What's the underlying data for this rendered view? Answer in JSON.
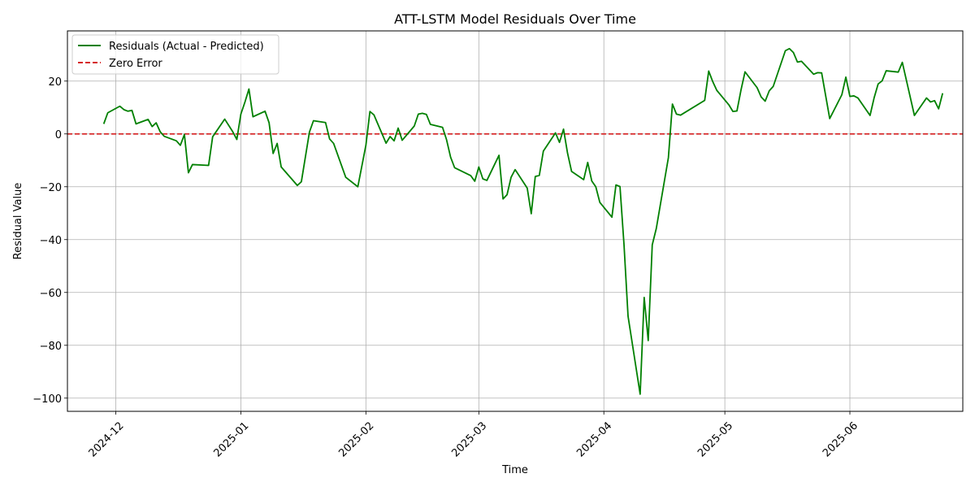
{
  "chart_data": {
    "type": "line",
    "title": "ATT-LSTM Model Residuals Over Time",
    "xlabel": "Time",
    "ylabel": "Residual Value",
    "grid": true,
    "legend_position": "top-left",
    "xlim": [
      "2024-11-19",
      "2025-06-29"
    ],
    "ylim": [
      -105,
      39
    ],
    "xticks": [
      {
        "date": "2024-12-01",
        "label": "2024-12"
      },
      {
        "date": "2025-01-01",
        "label": "2025-01"
      },
      {
        "date": "2025-02-01",
        "label": "2025-02"
      },
      {
        "date": "2025-03-01",
        "label": "2025-03"
      },
      {
        "date": "2025-04-01",
        "label": "2025-04"
      },
      {
        "date": "2025-05-01",
        "label": "2025-05"
      },
      {
        "date": "2025-06-01",
        "label": "2025-06"
      }
    ],
    "yticks": [
      {
        "value": 20,
        "label": "20"
      },
      {
        "value": 0,
        "label": "0"
      },
      {
        "value": -20,
        "label": "−20"
      },
      {
        "value": -40,
        "label": "−40"
      },
      {
        "value": -60,
        "label": "−60"
      },
      {
        "value": -80,
        "label": "−80"
      },
      {
        "value": -100,
        "label": "−100"
      }
    ],
    "reference_line": {
      "name": "Zero Error",
      "value": 0,
      "color": "#d62728",
      "style": "dashed"
    },
    "series": [
      {
        "name": "Residuals (Actual - Predicted)",
        "color": "#008000",
        "points": [
          [
            "2024-11-28",
            3.8
          ],
          [
            "2024-11-29",
            8.0
          ],
          [
            "2024-12-02",
            10.5
          ],
          [
            "2024-12-03",
            9.2
          ],
          [
            "2024-12-04",
            8.6
          ],
          [
            "2024-12-05",
            8.9
          ],
          [
            "2024-12-06",
            3.8
          ],
          [
            "2024-12-09",
            5.5
          ],
          [
            "2024-12-10",
            2.8
          ],
          [
            "2024-12-11",
            4.2
          ],
          [
            "2024-12-12",
            0.8
          ],
          [
            "2024-12-13",
            -0.9
          ],
          [
            "2024-12-16",
            -2.6
          ],
          [
            "2024-12-17",
            -4.3
          ],
          [
            "2024-12-18",
            -0.2
          ],
          [
            "2024-12-19",
            -14.7
          ],
          [
            "2024-12-20",
            -11.6
          ],
          [
            "2024-12-24",
            -11.9
          ],
          [
            "2024-12-25",
            -1.1
          ],
          [
            "2024-12-28",
            5.6
          ],
          [
            "2024-12-30",
            0.8
          ],
          [
            "2024-12-31",
            -2.1
          ],
          [
            "2025-01-01",
            7.5
          ],
          [
            "2025-01-02",
            12.0
          ],
          [
            "2025-01-03",
            17.0
          ],
          [
            "2025-01-04",
            6.5
          ],
          [
            "2025-01-07",
            8.6
          ],
          [
            "2025-01-08",
            4.2
          ],
          [
            "2025-01-09",
            -7.4
          ],
          [
            "2025-01-10",
            -3.6
          ],
          [
            "2025-01-11",
            -12.5
          ],
          [
            "2025-01-15",
            -19.5
          ],
          [
            "2025-01-16",
            -18.1
          ],
          [
            "2025-01-18",
            0.7
          ],
          [
            "2025-01-19",
            5.0
          ],
          [
            "2025-01-22",
            4.3
          ],
          [
            "2025-01-23",
            -1.9
          ],
          [
            "2025-01-24",
            -3.6
          ],
          [
            "2025-01-27",
            -16.4
          ],
          [
            "2025-01-30",
            -20.0
          ],
          [
            "2025-02-01",
            -4.3
          ],
          [
            "2025-02-02",
            8.5
          ],
          [
            "2025-02-03",
            7.2
          ],
          [
            "2025-02-06",
            -3.5
          ],
          [
            "2025-02-07",
            -1.0
          ],
          [
            "2025-02-08",
            -2.6
          ],
          [
            "2025-02-09",
            2.2
          ],
          [
            "2025-02-10",
            -2.4
          ],
          [
            "2025-02-13",
            3.0
          ],
          [
            "2025-02-14",
            7.5
          ],
          [
            "2025-02-15",
            7.8
          ],
          [
            "2025-02-16",
            7.4
          ],
          [
            "2025-02-17",
            3.6
          ],
          [
            "2025-02-20",
            2.5
          ],
          [
            "2025-02-21",
            -2.2
          ],
          [
            "2025-02-22",
            -8.8
          ],
          [
            "2025-02-23",
            -12.8
          ],
          [
            "2025-02-27",
            -15.8
          ],
          [
            "2025-02-28",
            -17.9
          ],
          [
            "2025-03-01",
            -12.5
          ],
          [
            "2025-03-02",
            -17.0
          ],
          [
            "2025-03-03",
            -17.6
          ],
          [
            "2025-03-06",
            -8.1
          ],
          [
            "2025-03-07",
            -24.6
          ],
          [
            "2025-03-08",
            -23.0
          ],
          [
            "2025-03-09",
            -16.4
          ],
          [
            "2025-03-10",
            -13.5
          ],
          [
            "2025-03-13",
            -20.5
          ],
          [
            "2025-03-14",
            -30.2
          ],
          [
            "2025-03-15",
            -16.1
          ],
          [
            "2025-03-16",
            -15.7
          ],
          [
            "2025-03-17",
            -6.5
          ],
          [
            "2025-03-20",
            0.4
          ],
          [
            "2025-03-21",
            -3.2
          ],
          [
            "2025-03-22",
            1.8
          ],
          [
            "2025-03-23",
            -7.3
          ],
          [
            "2025-03-24",
            -14.2
          ],
          [
            "2025-03-27",
            -17.3
          ],
          [
            "2025-03-28",
            -10.8
          ],
          [
            "2025-03-29",
            -17.8
          ],
          [
            "2025-03-30",
            -20.0
          ],
          [
            "2025-03-31",
            -25.9
          ],
          [
            "2025-04-03",
            -31.5
          ],
          [
            "2025-04-04",
            -19.3
          ],
          [
            "2025-04-05",
            -19.9
          ],
          [
            "2025-04-06",
            -42.0
          ],
          [
            "2025-04-07",
            -69.0
          ],
          [
            "2025-04-10",
            -98.5
          ],
          [
            "2025-04-11",
            -61.9
          ],
          [
            "2025-04-12",
            -78.2
          ],
          [
            "2025-04-13",
            -42.0
          ],
          [
            "2025-04-14",
            -35.8
          ],
          [
            "2025-04-17",
            -9.0
          ],
          [
            "2025-04-18",
            11.3
          ],
          [
            "2025-04-19",
            7.5
          ],
          [
            "2025-04-20",
            7.1
          ],
          [
            "2025-04-26",
            12.7
          ],
          [
            "2025-04-27",
            23.8
          ],
          [
            "2025-04-28",
            19.8
          ],
          [
            "2025-04-29",
            16.5
          ],
          [
            "2025-05-02",
            11.0
          ],
          [
            "2025-05-03",
            8.5
          ],
          [
            "2025-05-04",
            8.7
          ],
          [
            "2025-05-05",
            16.6
          ],
          [
            "2025-05-06",
            23.5
          ],
          [
            "2025-05-09",
            17.5
          ],
          [
            "2025-05-10",
            14.0
          ],
          [
            "2025-05-11",
            12.4
          ],
          [
            "2025-05-12",
            16.3
          ],
          [
            "2025-05-13",
            18.0
          ],
          [
            "2025-05-16",
            31.5
          ],
          [
            "2025-05-17",
            32.3
          ],
          [
            "2025-05-18",
            30.8
          ],
          [
            "2025-05-19",
            27.2
          ],
          [
            "2025-05-20",
            27.5
          ],
          [
            "2025-05-23",
            22.6
          ],
          [
            "2025-05-24",
            23.2
          ],
          [
            "2025-05-25",
            23.1
          ],
          [
            "2025-05-27",
            5.8
          ],
          [
            "2025-05-30",
            14.8
          ],
          [
            "2025-05-31",
            21.5
          ],
          [
            "2025-06-01",
            14.2
          ],
          [
            "2025-06-02",
            14.4
          ],
          [
            "2025-06-03",
            13.6
          ],
          [
            "2025-06-06",
            7.0
          ],
          [
            "2025-06-07",
            13.6
          ],
          [
            "2025-06-08",
            18.9
          ],
          [
            "2025-06-09",
            20.1
          ],
          [
            "2025-06-10",
            23.9
          ],
          [
            "2025-06-13",
            23.4
          ],
          [
            "2025-06-14",
            27.1
          ],
          [
            "2025-06-17",
            7.0
          ],
          [
            "2025-06-20",
            13.6
          ],
          [
            "2025-06-21",
            12.1
          ],
          [
            "2025-06-22",
            12.6
          ],
          [
            "2025-06-23",
            9.5
          ],
          [
            "2025-06-24",
            15.4
          ]
        ]
      }
    ]
  }
}
